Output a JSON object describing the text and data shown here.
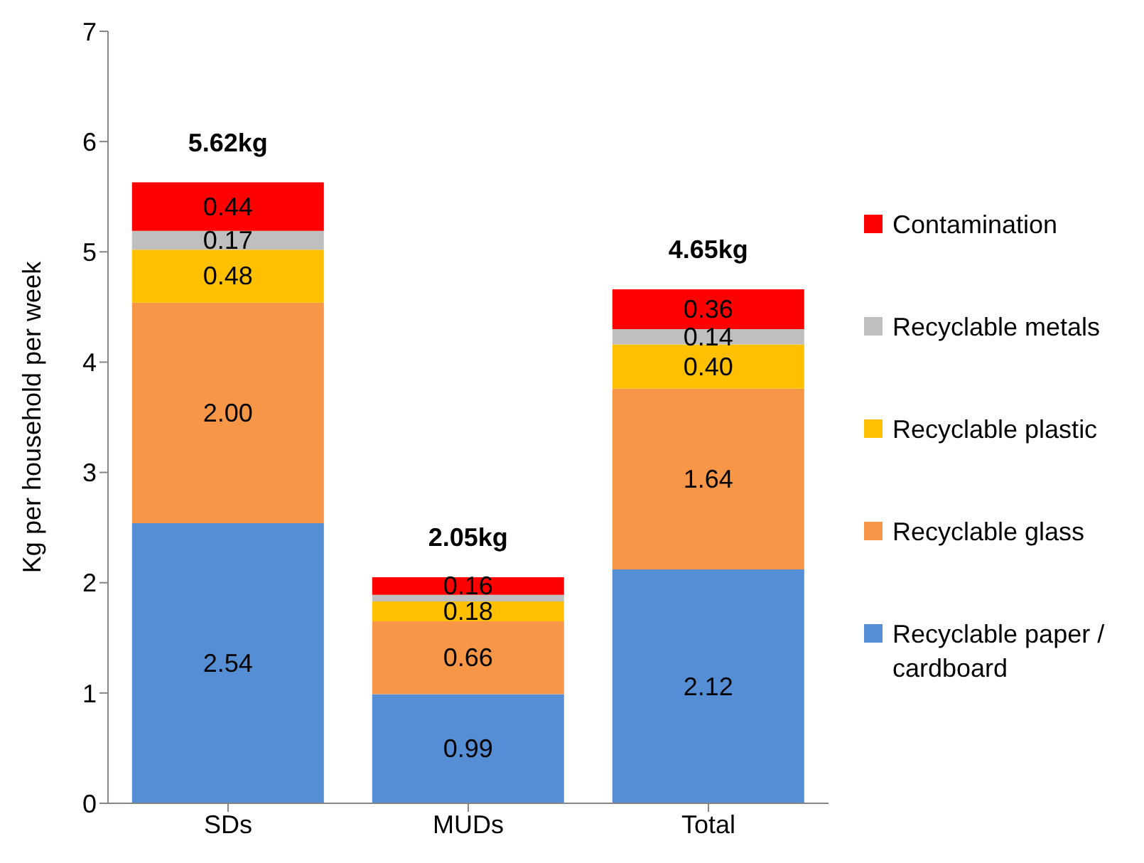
{
  "chart_data": {
    "type": "bar",
    "stacked": true,
    "ylabel": "Kg per household per week",
    "categories": [
      "SDs",
      "MUDs",
      "Total"
    ],
    "ylim": [
      0,
      7
    ],
    "yticks": [
      0,
      1,
      2,
      3,
      4,
      5,
      6,
      7
    ],
    "grid": false,
    "legend": "right",
    "totals": [
      "5.62kg",
      "2.05kg",
      "4.65kg"
    ],
    "series": [
      {
        "name": "Recyclable paper / cardboard",
        "color": "#558ed5",
        "values": [
          2.54,
          0.99,
          2.12
        ],
        "value_labels": [
          "2.54",
          "0.99",
          "2.12"
        ]
      },
      {
        "name": "Recyclable glass",
        "color": "#f79646",
        "values": [
          2.0,
          0.66,
          1.64
        ],
        "value_labels": [
          "2.00",
          "0.66",
          "1.64"
        ]
      },
      {
        "name": "Recyclable plastic",
        "color": "#ffc000",
        "values": [
          0.48,
          0.18,
          0.4
        ],
        "value_labels": [
          "0.48",
          "0.18",
          "0.40"
        ]
      },
      {
        "name": "Recyclable metals",
        "color": "#bfbfbf",
        "values": [
          0.17,
          0.06,
          0.14
        ],
        "value_labels": [
          "0.17",
          null,
          "0.14"
        ]
      },
      {
        "name": "Contamination",
        "color": "#ff0000",
        "values": [
          0.44,
          0.16,
          0.36
        ],
        "value_labels": [
          "0.44",
          "0.16",
          "0.36"
        ]
      }
    ]
  }
}
